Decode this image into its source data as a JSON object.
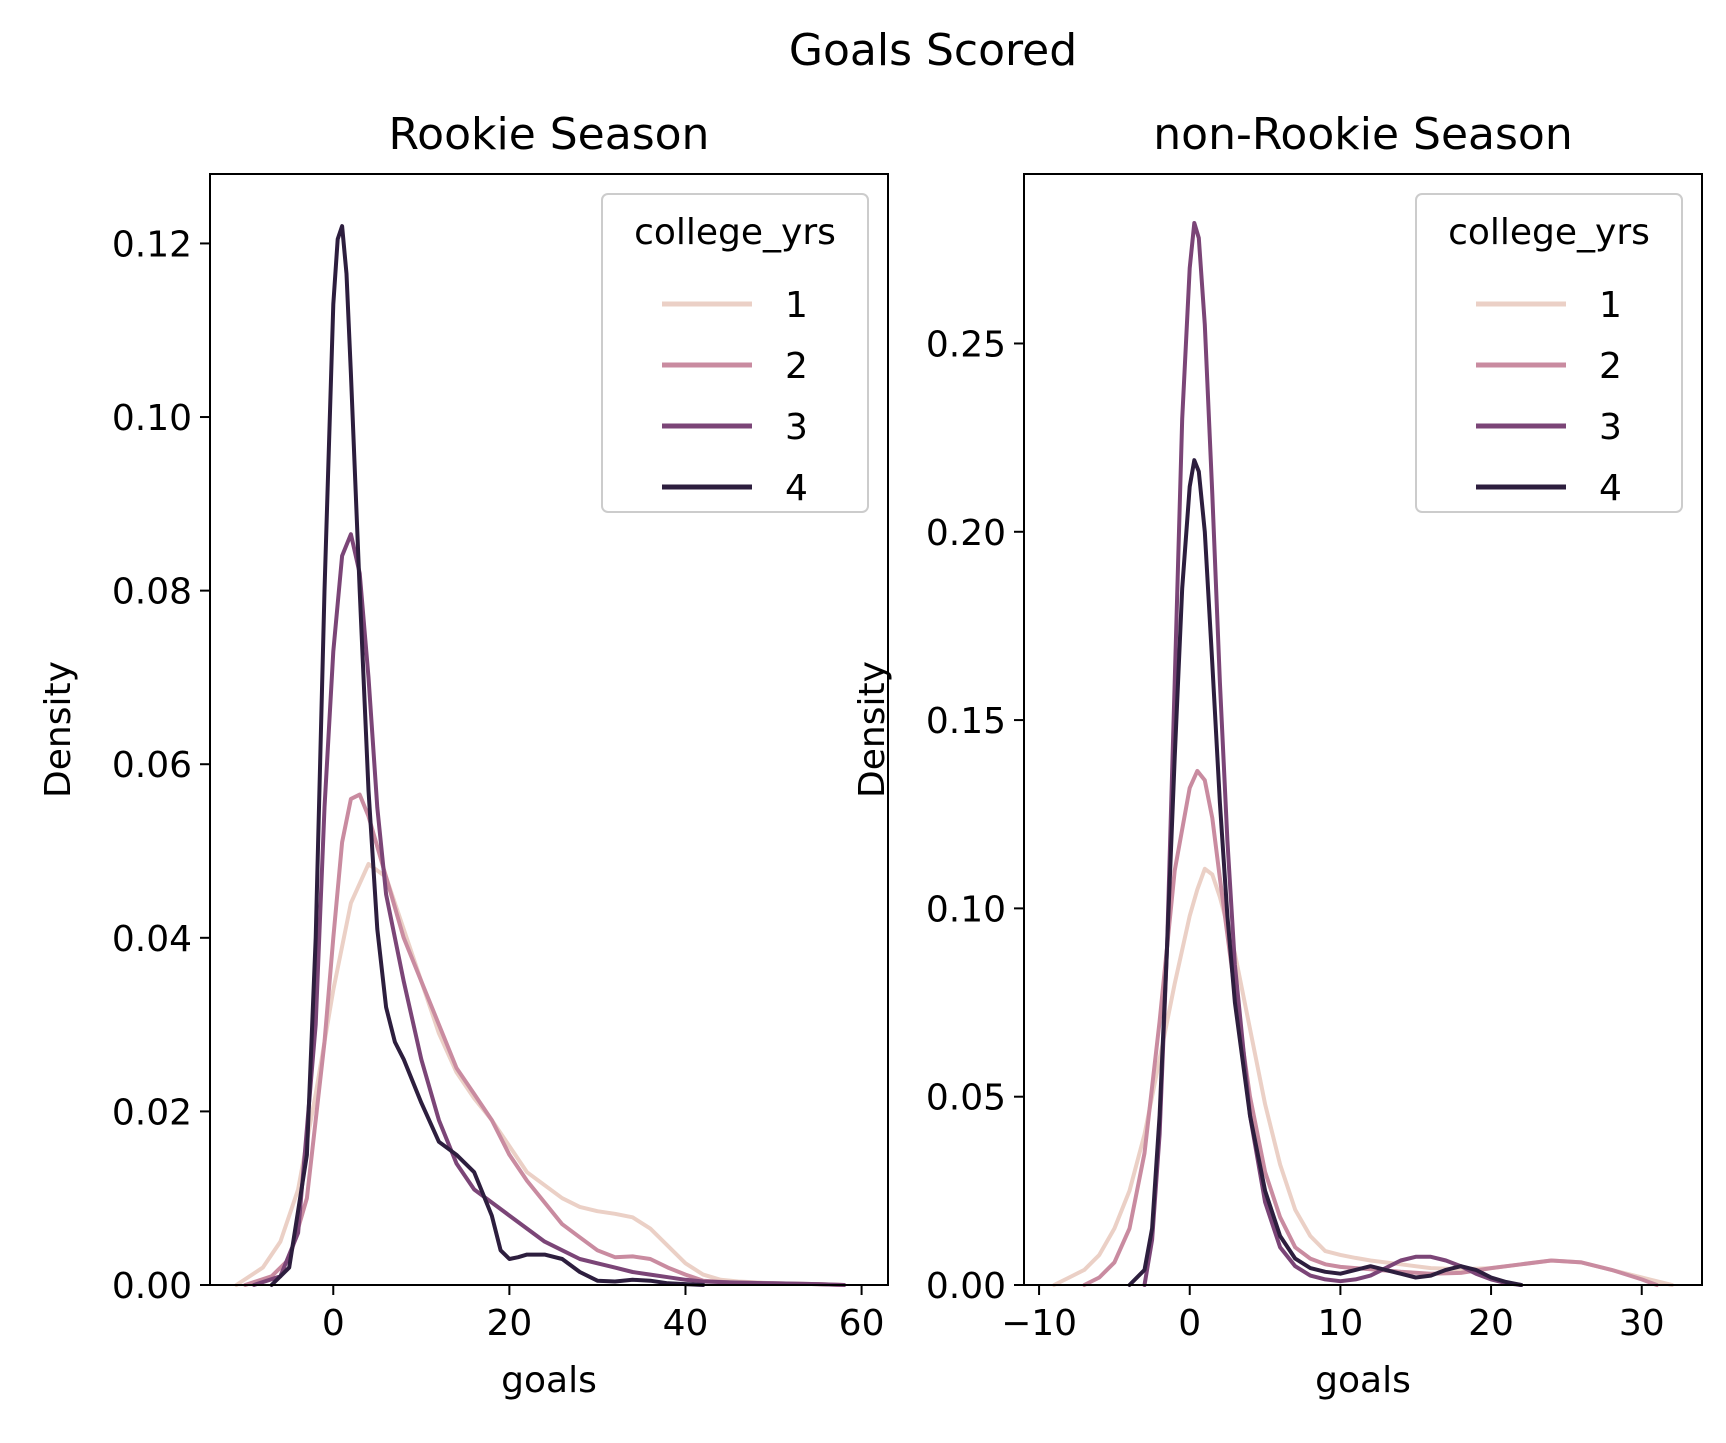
{
  "figure": {
    "suptitle": "Goals Scored"
  },
  "chart_data": [
    {
      "type": "line",
      "title": "Rookie Season",
      "xlabel": "goals",
      "ylabel": "Density",
      "xlim": [
        -14,
        63
      ],
      "ylim": [
        0,
        0.128
      ],
      "xticks": [
        0,
        20,
        40,
        60
      ],
      "xtick_labels": [
        "0",
        "20",
        "40",
        "60"
      ],
      "yticks": [
        0,
        0.02,
        0.04,
        0.06,
        0.08,
        0.1,
        0.12
      ],
      "ytick_labels": [
        "0.00",
        "0.02",
        "0.04",
        "0.06",
        "0.08",
        "0.10",
        "0.12"
      ],
      "grid": false,
      "legend": {
        "title": "college_yrs",
        "position": "top-right"
      },
      "series": [
        {
          "name": "1",
          "color": "#ebd0c6",
          "x": [
            -11,
            -8,
            -6,
            -4,
            -2,
            0,
            2,
            4,
            6,
            8,
            10,
            12,
            14,
            16,
            18,
            20,
            22,
            24,
            26,
            28,
            30,
            32,
            34,
            36,
            38,
            40,
            42,
            44,
            46,
            50,
            55,
            58
          ],
          "y": [
            0,
            0.002,
            0.005,
            0.011,
            0.022,
            0.034,
            0.044,
            0.0485,
            0.047,
            0.041,
            0.035,
            0.029,
            0.0245,
            0.0215,
            0.019,
            0.016,
            0.013,
            0.0115,
            0.01,
            0.009,
            0.0085,
            0.0082,
            0.0078,
            0.0065,
            0.0045,
            0.0025,
            0.0012,
            0.0006,
            0.0004,
            0.0002,
            0.0001,
            0
          ]
        },
        {
          "name": "2",
          "color": "#c98ba0",
          "x": [
            -10,
            -7,
            -5,
            -3,
            -1,
            0,
            1,
            2,
            3,
            4,
            6,
            8,
            10,
            12,
            14,
            16,
            18,
            20,
            22,
            24,
            26,
            28,
            30,
            32,
            34,
            36,
            38,
            40,
            42,
            45,
            50,
            55,
            58
          ],
          "y": [
            0,
            0.001,
            0.003,
            0.01,
            0.028,
            0.04,
            0.051,
            0.056,
            0.0565,
            0.054,
            0.047,
            0.04,
            0.035,
            0.03,
            0.025,
            0.022,
            0.019,
            0.015,
            0.012,
            0.0095,
            0.007,
            0.0055,
            0.004,
            0.0032,
            0.0033,
            0.003,
            0.002,
            0.0012,
            0.0005,
            0.0003,
            0.0002,
            0.0001,
            0
          ]
        },
        {
          "name": "3",
          "color": "#7b4577",
          "x": [
            -9,
            -6,
            -4,
            -2,
            -1,
            0,
            1,
            2,
            3,
            4,
            5,
            6,
            8,
            10,
            12,
            14,
            16,
            18,
            20,
            22,
            24,
            26,
            28,
            30,
            32,
            34,
            36,
            38,
            40,
            42,
            45,
            50,
            55,
            58
          ],
          "y": [
            0,
            0.001,
            0.006,
            0.03,
            0.055,
            0.073,
            0.084,
            0.0865,
            0.082,
            0.07,
            0.055,
            0.045,
            0.035,
            0.026,
            0.019,
            0.014,
            0.011,
            0.0095,
            0.008,
            0.0065,
            0.005,
            0.004,
            0.003,
            0.0025,
            0.002,
            0.0015,
            0.0012,
            0.0009,
            0.0006,
            0.0004,
            0.0003,
            0.0002,
            0.0001,
            0
          ]
        },
        {
          "name": "4",
          "color": "#2d1e3e",
          "x": [
            -7,
            -5,
            -3,
            -2,
            -1,
            0,
            0.5,
            1,
            1.5,
            2,
            3,
            4,
            5,
            6,
            7,
            8,
            10,
            12,
            14,
            16,
            18,
            19,
            20,
            21,
            22,
            24,
            26,
            28,
            30,
            32,
            34,
            36,
            38,
            40,
            42
          ],
          "y": [
            0,
            0.002,
            0.015,
            0.04,
            0.08,
            0.113,
            0.1205,
            0.122,
            0.1165,
            0.105,
            0.08,
            0.057,
            0.041,
            0.032,
            0.028,
            0.026,
            0.021,
            0.0165,
            0.015,
            0.013,
            0.008,
            0.004,
            0.003,
            0.0032,
            0.0035,
            0.0035,
            0.003,
            0.0015,
            0.0005,
            0.0004,
            0.0006,
            0.0005,
            0.0002,
            0.0001,
            0
          ]
        }
      ]
    },
    {
      "type": "line",
      "title": "non-Rookie Season",
      "xlabel": "goals",
      "ylabel": "Density",
      "xlim": [
        -11,
        34
      ],
      "ylim": [
        0,
        0.295
      ],
      "xticks": [
        -10,
        0,
        10,
        20,
        30
      ],
      "xtick_labels": [
        "−10",
        "0",
        "10",
        "20",
        "30"
      ],
      "yticks": [
        0,
        0.05,
        0.1,
        0.15,
        0.2,
        0.25
      ],
      "ytick_labels": [
        "0.00",
        "0.05",
        "0.10",
        "0.15",
        "0.20",
        "0.25"
      ],
      "grid": false,
      "legend": {
        "title": "college_yrs",
        "position": "top-right"
      },
      "series": [
        {
          "name": "1",
          "color": "#ebd0c6",
          "x": [
            -9,
            -8,
            -7,
            -6,
            -5,
            -4,
            -3,
            -2,
            -1,
            0,
            0.5,
            1,
            1.5,
            2,
            3,
            4,
            5,
            6,
            7,
            8,
            9,
            10,
            11,
            12,
            14,
            16,
            18,
            20,
            22,
            24,
            26,
            28,
            30,
            32
          ],
          "y": [
            0,
            0.002,
            0.004,
            0.008,
            0.015,
            0.025,
            0.04,
            0.06,
            0.08,
            0.098,
            0.105,
            0.1105,
            0.109,
            0.103,
            0.088,
            0.068,
            0.048,
            0.032,
            0.02,
            0.013,
            0.009,
            0.008,
            0.0072,
            0.0065,
            0.0055,
            0.0045,
            0.0042,
            0.0045,
            0.0055,
            0.0065,
            0.006,
            0.004,
            0.002,
            0
          ]
        },
        {
          "name": "2",
          "color": "#c98ba0",
          "x": [
            -7,
            -6,
            -5,
            -4,
            -3,
            -2,
            -1,
            0,
            0.5,
            1,
            1.5,
            2,
            3,
            4,
            5,
            6,
            7,
            8,
            9,
            10,
            11,
            12,
            14,
            16,
            18,
            20,
            22,
            24,
            26,
            28,
            30,
            31
          ],
          "y": [
            0,
            0.002,
            0.006,
            0.015,
            0.035,
            0.07,
            0.11,
            0.132,
            0.1365,
            0.134,
            0.124,
            0.108,
            0.078,
            0.05,
            0.03,
            0.018,
            0.01,
            0.007,
            0.0055,
            0.0048,
            0.0045,
            0.0042,
            0.0035,
            0.003,
            0.0032,
            0.0045,
            0.0055,
            0.0065,
            0.006,
            0.004,
            0.0015,
            0
          ]
        },
        {
          "name": "3",
          "color": "#7b4577",
          "x": [
            -3,
            -2.5,
            -2,
            -1.5,
            -1,
            -0.5,
            0,
            0.3,
            0.6,
            1,
            1.5,
            2,
            2.5,
            3,
            4,
            5,
            6,
            7,
            8,
            9,
            10,
            11,
            12,
            13,
            14,
            15,
            16,
            17,
            18,
            19,
            20,
            21,
            22
          ],
          "y": [
            0,
            0.012,
            0.04,
            0.09,
            0.16,
            0.23,
            0.27,
            0.282,
            0.278,
            0.255,
            0.21,
            0.16,
            0.118,
            0.085,
            0.045,
            0.022,
            0.01,
            0.005,
            0.0025,
            0.0015,
            0.001,
            0.0015,
            0.0025,
            0.0045,
            0.0065,
            0.0075,
            0.0075,
            0.0065,
            0.005,
            0.003,
            0.0015,
            0.0005,
            0
          ]
        },
        {
          "name": "4",
          "color": "#2d1e3e",
          "x": [
            -4,
            -3,
            -2.5,
            -2,
            -1.5,
            -1,
            -0.5,
            0,
            0.3,
            0.6,
            1,
            1.5,
            2,
            2.5,
            3,
            4,
            5,
            6,
            7,
            8,
            9,
            10,
            11,
            12,
            13,
            14,
            15,
            16,
            17,
            18,
            19,
            20,
            21,
            22
          ],
          "y": [
            0,
            0.004,
            0.015,
            0.045,
            0.09,
            0.14,
            0.185,
            0.212,
            0.219,
            0.216,
            0.2,
            0.165,
            0.128,
            0.098,
            0.075,
            0.045,
            0.025,
            0.013,
            0.007,
            0.0045,
            0.0035,
            0.003,
            0.004,
            0.005,
            0.004,
            0.003,
            0.002,
            0.0025,
            0.004,
            0.005,
            0.004,
            0.002,
            0.0008,
            0
          ]
        }
      ]
    }
  ]
}
